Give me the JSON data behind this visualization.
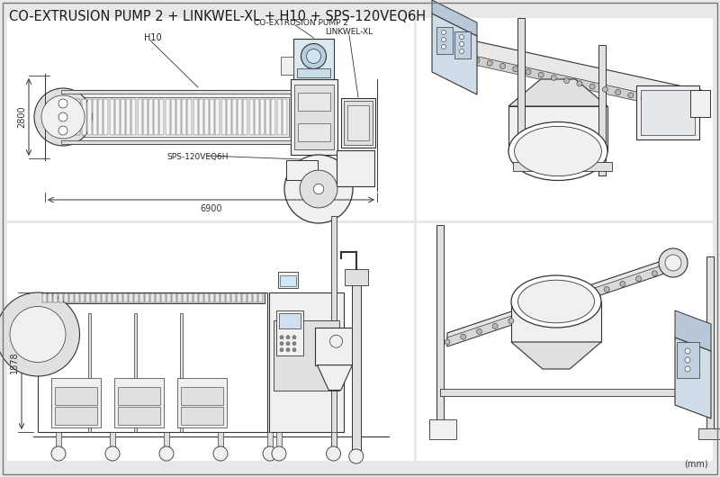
{
  "title": "CO-EXTRUSION PUMP 2 + LINKWEL-XL + H10 + SPS-120VEQ6H",
  "title_fontsize": 10.5,
  "title_color": "#1a1a1a",
  "bg_color": "#e8e8e8",
  "panel_bg": "#ffffff",
  "line_color": "#333333",
  "dim_color": "#333333",
  "label_color": "#222222",
  "unit_text": "(mm)",
  "annotations": {
    "co_extrusion": "CO-EXTRUSION PUMP 2",
    "linkwel": "LINKWEL-XL",
    "h10": "H10",
    "sps": "SPS-120VEQ6H",
    "dim_2800": "2800",
    "dim_6900": "6900",
    "dim_1878": "1878"
  }
}
